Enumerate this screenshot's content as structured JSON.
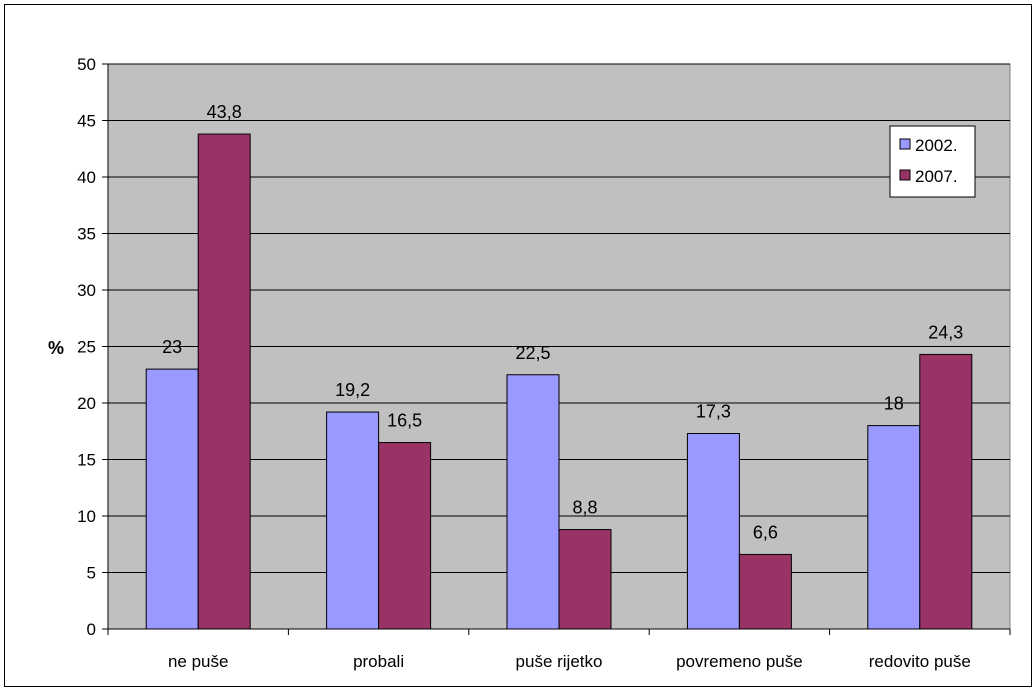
{
  "chart_data": {
    "type": "bar",
    "title": "",
    "xlabel": "",
    "ylabel": "%",
    "ylim": [
      0,
      50
    ],
    "yticks": [
      0,
      5,
      10,
      15,
      20,
      25,
      30,
      35,
      40,
      45,
      50
    ],
    "grid": true,
    "legend_position": "top-right",
    "categories": [
      "ne puše",
      "probali",
      "puše rijetko",
      "povremeno puše",
      "redovito puše"
    ],
    "series": [
      {
        "name": "2002.",
        "color": "#9999ff",
        "values": [
          23,
          19.2,
          22.5,
          17.3,
          18
        ],
        "labels": [
          "23",
          "19,2",
          "22,5",
          "17,3",
          "18"
        ]
      },
      {
        "name": "2007.",
        "color": "#993366",
        "values": [
          43.8,
          16.5,
          8.8,
          6.6,
          24.3
        ],
        "labels": [
          "43,8",
          "16,5",
          "8,8",
          "6,6",
          "24,3"
        ]
      }
    ],
    "plot_background": "#c0c0c0"
  }
}
